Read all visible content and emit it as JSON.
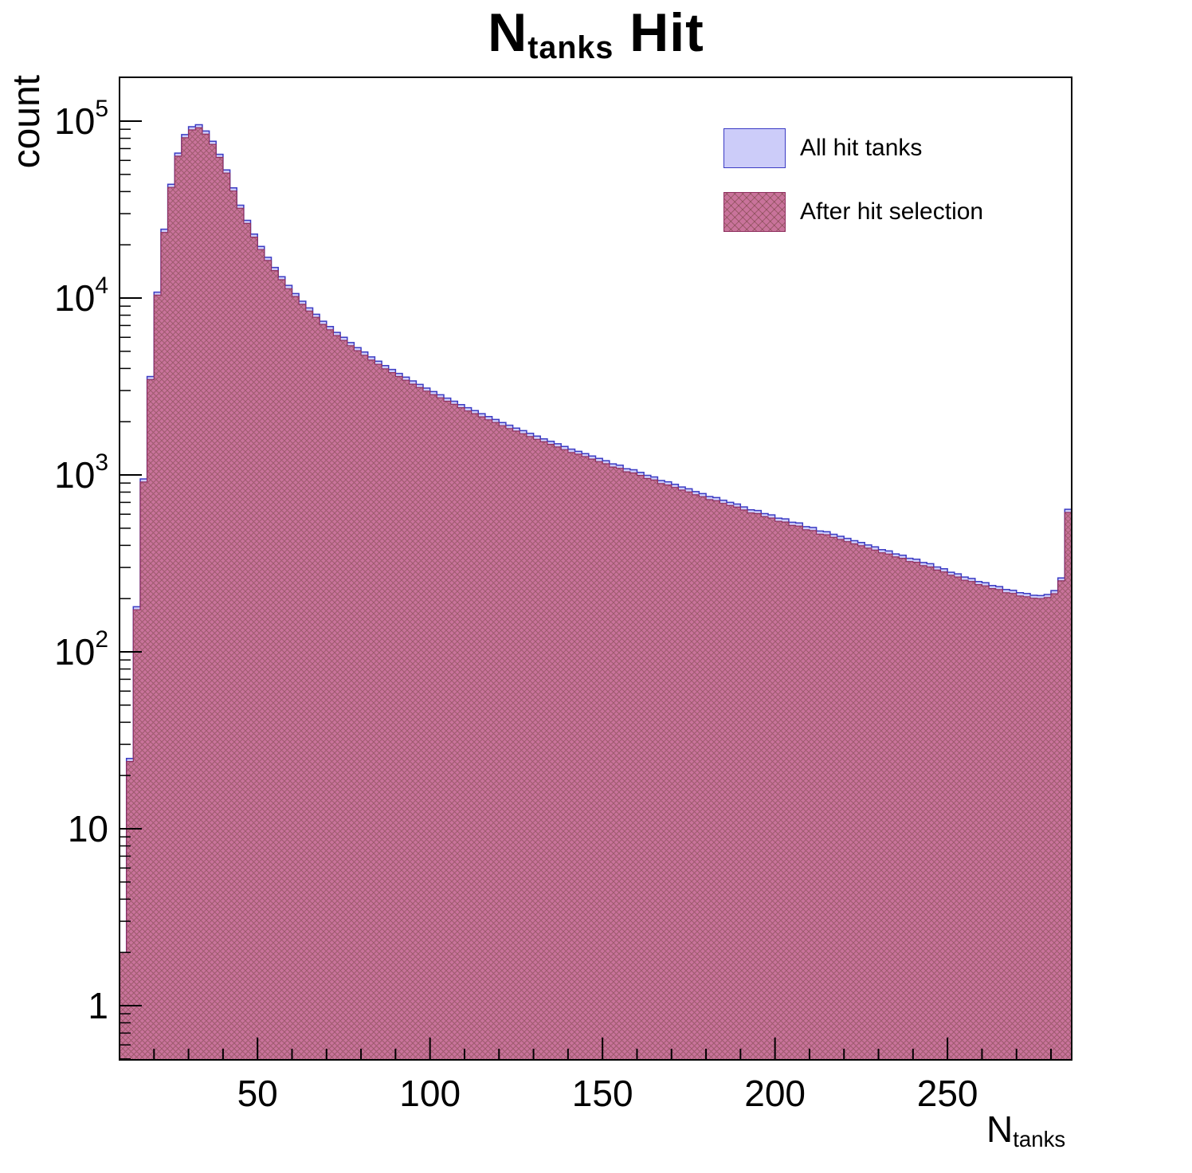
{
  "title": {
    "main": "N",
    "sub": "tanks",
    "rest": " Hit"
  },
  "axes": {
    "y_title": "count",
    "x_title_main": "N",
    "x_title_sub": "tanks"
  },
  "legend": {
    "items": [
      {
        "label": "All hit tanks",
        "swatch": "all"
      },
      {
        "label": "After hit selection",
        "swatch": "selected"
      }
    ]
  },
  "chart_data": {
    "type": "bar",
    "subtype": "step-histogram-overlay",
    "title": "N_tanks Hit",
    "xlabel": "N_tanks",
    "ylabel": "count",
    "y_scale": "log",
    "xlim": [
      10,
      286
    ],
    "ylim": [
      0.494,
      177000
    ],
    "bin_start": 10,
    "bin_width": 2,
    "n_bins": 138,
    "x_ticks": {
      "major": [
        50,
        100,
        150,
        200,
        250
      ],
      "minor_step": 10
    },
    "y_ticks": [
      {
        "value": 1,
        "base": "1"
      },
      {
        "value": 10,
        "base": "10"
      },
      {
        "value": 100,
        "base": "10",
        "exp": "2"
      },
      {
        "value": 1000,
        "base": "10",
        "exp": "3"
      },
      {
        "value": 10000,
        "base": "10",
        "exp": "4"
      },
      {
        "value": 100000,
        "base": "10",
        "exp": "5"
      }
    ],
    "legend_position": "top-right",
    "grid": false,
    "series": [
      {
        "name": "All hit tanks",
        "values": [
          2,
          25,
          180,
          950,
          3600,
          10800,
          24500,
          44000,
          66000,
          84000,
          93000,
          95500,
          88000,
          77000,
          65000,
          53000,
          42000,
          33500,
          27500,
          23000,
          19600,
          17000,
          14900,
          13200,
          11800,
          10600,
          9600,
          8800,
          8100,
          7400,
          6900,
          6400,
          6000,
          5600,
          5250,
          4950,
          4650,
          4400,
          4150,
          3950,
          3750,
          3570,
          3400,
          3250,
          3100,
          2960,
          2840,
          2720,
          2610,
          2500,
          2400,
          2310,
          2220,
          2140,
          2060,
          1980,
          1910,
          1840,
          1780,
          1720,
          1660,
          1600,
          1550,
          1500,
          1450,
          1400,
          1360,
          1320,
          1280,
          1240,
          1205,
          1155,
          1135,
          1085,
          1070,
          1035,
          995,
          975,
          930,
          915,
          885,
          855,
          835,
          805,
          785,
          755,
          745,
          720,
          700,
          685,
          660,
          635,
          630,
          605,
          595,
          570,
          565,
          540,
          535,
          510,
          505,
          482,
          478,
          462,
          450,
          438,
          425,
          415,
          402,
          392,
          378,
          372,
          358,
          352,
          338,
          334,
          320,
          315,
          302,
          295,
          282,
          276,
          265,
          260,
          250,
          246,
          237,
          234,
          225,
          223,
          216,
          214,
          209,
          208,
          211,
          222,
          262,
          640
        ]
      },
      {
        "name": "After hit selection",
        "values": [
          2,
          24,
          173,
          912,
          3460,
          10400,
          23500,
          42200,
          63400,
          80600,
          89300,
          91700,
          84500,
          73900,
          62400,
          50900,
          40300,
          32200,
          26400,
          22100,
          18800,
          16300,
          14300,
          12700,
          11300,
          10200,
          9220,
          8450,
          7780,
          7100,
          6620,
          6140,
          5760,
          5380,
          5040,
          4750,
          4460,
          4220,
          3980,
          3790,
          3600,
          3430,
          3260,
          3120,
          2980,
          2840,
          2730,
          2610,
          2510,
          2400,
          2300,
          2220,
          2130,
          2050,
          1980,
          1900,
          1830,
          1770,
          1710,
          1650,
          1590,
          1540,
          1490,
          1440,
          1390,
          1340,
          1310,
          1270,
          1230,
          1190,
          1157,
          1109,
          1090,
          1042,
          1027,
          994,
          955,
          936,
          893,
          878,
          850,
          821,
          802,
          773,
          754,
          725,
          715,
          691,
          672,
          658,
          634,
          610,
          605,
          581,
          571,
          547,
          542,
          518,
          514,
          490,
          485,
          463,
          459,
          444,
          432,
          420,
          408,
          398,
          386,
          376,
          363,
          357,
          344,
          338,
          324,
          321,
          307,
          302,
          290,
          283,
          271,
          265,
          254,
          250,
          240,
          236,
          228,
          225,
          216,
          214,
          207,
          205,
          201,
          200,
          203,
          213,
          252,
          614
        ]
      }
    ],
    "colors": {
      "all_fill": "#ccccf9",
      "all_stroke": "#3b3bc4",
      "selected_fill": "#c9739b",
      "selected_hatch": "rgba(74,44,20,0.35)",
      "selected_stroke": "#8f2f5f",
      "frame": "#000000"
    }
  }
}
